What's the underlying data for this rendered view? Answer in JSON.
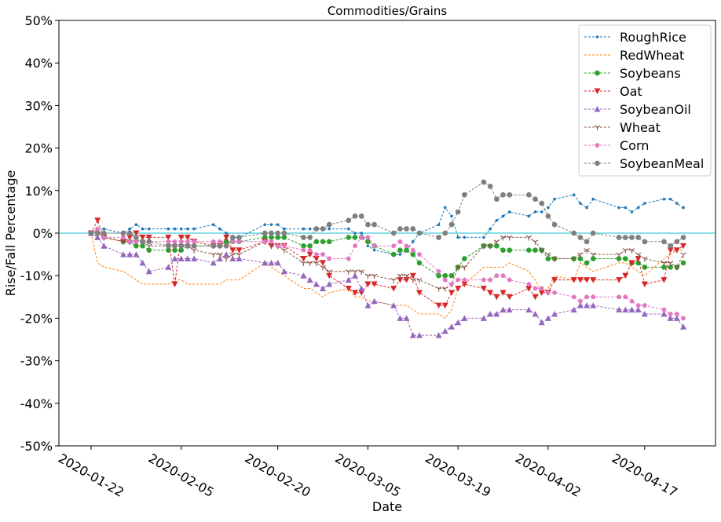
{
  "chart_data": {
    "type": "line",
    "title": "Commodities/Grains",
    "xlabel": "Date",
    "ylabel": "Rise/Fall Percentage",
    "ylim": [
      -50,
      50
    ],
    "yticks": [
      -50,
      -40,
      -30,
      -20,
      -10,
      0,
      10,
      20,
      30,
      40,
      50
    ],
    "ytick_labels": [
      "-50%",
      "-40%",
      "-30%",
      "-20%",
      "-10%",
      "0%",
      "10%",
      "20%",
      "30%",
      "40%",
      "50%"
    ],
    "xticks": [
      "2020-01-22",
      "2020-02-05",
      "2020-02-20",
      "2020-03-05",
      "2020-03-19",
      "2020-04-02",
      "2020-04-17"
    ],
    "xlim": [
      "2020-01-17",
      "2020-04-28"
    ],
    "zero_line_color": "#17becf",
    "legend_position": "upper right",
    "grid": false,
    "x": [
      "2020-01-22",
      "2020-01-23",
      "2020-01-24",
      "2020-01-27",
      "2020-01-28",
      "2020-01-29",
      "2020-01-30",
      "2020-01-31",
      "2020-02-03",
      "2020-02-04",
      "2020-02-05",
      "2020-02-06",
      "2020-02-07",
      "2020-02-10",
      "2020-02-11",
      "2020-02-12",
      "2020-02-13",
      "2020-02-14",
      "2020-02-18",
      "2020-02-19",
      "2020-02-20",
      "2020-02-21",
      "2020-02-24",
      "2020-02-25",
      "2020-02-26",
      "2020-02-27",
      "2020-02-28",
      "2020-03-02",
      "2020-03-03",
      "2020-03-04",
      "2020-03-05",
      "2020-03-06",
      "2020-03-09",
      "2020-03-10",
      "2020-03-11",
      "2020-03-12",
      "2020-03-13",
      "2020-03-16",
      "2020-03-17",
      "2020-03-18",
      "2020-03-19",
      "2020-03-20",
      "2020-03-23",
      "2020-03-24",
      "2020-03-25",
      "2020-03-26",
      "2020-03-27",
      "2020-03-30",
      "2020-03-31",
      "2020-04-01",
      "2020-04-02",
      "2020-04-03",
      "2020-04-06",
      "2020-04-07",
      "2020-04-08",
      "2020-04-09",
      "2020-04-13",
      "2020-04-14",
      "2020-04-15",
      "2020-04-16",
      "2020-04-17",
      "2020-04-20",
      "2020-04-21",
      "2020-04-22",
      "2020-04-23"
    ],
    "series": [
      {
        "name": "RoughRice",
        "color": "#1f77b4",
        "marker": "point",
        "values": [
          0,
          1,
          1,
          0,
          1,
          2,
          1,
          1,
          1,
          1,
          1,
          1,
          1,
          2,
          1,
          0,
          -1,
          -1,
          2,
          2,
          2,
          1,
          1,
          1,
          1,
          1,
          1,
          1,
          0,
          0,
          -3,
          -4,
          -5,
          -5,
          -4,
          -2,
          0,
          2,
          6,
          4,
          -1,
          -1,
          -1,
          1,
          3,
          4,
          5,
          4,
          5,
          5,
          6,
          8,
          9,
          7,
          6,
          8,
          6,
          6,
          5,
          6,
          7,
          8,
          8,
          7,
          6
        ]
      },
      {
        "name": "RedWheat",
        "color": "#ff7f0e",
        "marker": "none",
        "values": [
          0,
          -7,
          -8,
          -9,
          -10,
          -11,
          -12,
          -12,
          -12,
          -11,
          -11,
          -12,
          -12,
          -12,
          -12,
          -11,
          -11,
          -11,
          -7,
          -8,
          -9,
          -10,
          -13,
          -13,
          -14,
          -15,
          -14,
          -13,
          -15,
          -15,
          -16,
          -16,
          -17,
          -17,
          -17,
          -18,
          -19,
          -19,
          -20,
          -18,
          -13,
          -12,
          -8,
          -8,
          -8,
          -8,
          -7,
          -9,
          -11,
          -14,
          -13,
          -10,
          -11,
          -7,
          -8,
          -9,
          -7,
          -7,
          -8,
          -9,
          -10,
          -6,
          -5,
          -4,
          -4
        ]
      },
      {
        "name": "Soybeans",
        "color": "#2ca02c",
        "marker": "circle",
        "values": [
          0,
          0,
          -1,
          -2,
          -2,
          -3,
          -3,
          -4,
          -4,
          -4,
          -4,
          -3,
          -3,
          -3,
          -3,
          -2,
          -2,
          -2,
          -1,
          -1,
          -1,
          -1,
          -3,
          -3,
          -2,
          -2,
          -2,
          -1,
          -1,
          -1,
          -2,
          -3,
          -5,
          -4,
          -4,
          -5,
          -7,
          -10,
          -10,
          -10,
          -8,
          -6,
          -3,
          -3,
          -3,
          -4,
          -4,
          -4,
          -4,
          -4,
          -6,
          -6,
          -6,
          -6,
          -7,
          -6,
          -6,
          -6,
          -7,
          -7,
          -8,
          -8,
          -8,
          -8,
          -7
        ]
      },
      {
        "name": "Oat",
        "color": "#d62728",
        "marker": "triangle_down",
        "values": [
          0,
          3,
          -1,
          -2,
          -1,
          0,
          -1,
          -1,
          -1,
          -12,
          -1,
          -1,
          -2,
          -3,
          -3,
          -1,
          -4,
          -4,
          -2,
          -3,
          -3,
          -3,
          -6,
          -5,
          -6,
          -7,
          -10,
          -13,
          -14,
          -14,
          -12,
          -12,
          -13,
          -11,
          -11,
          -10,
          -14,
          -17,
          -17,
          -14,
          -13,
          -12,
          -13,
          -14,
          -15,
          -14,
          -15,
          -13,
          -15,
          -14,
          -14,
          -11,
          -11,
          -11,
          -11,
          -11,
          -11,
          -10,
          -7,
          -6,
          -12,
          -11,
          -4,
          -4,
          -3
        ]
      },
      {
        "name": "SoybeanOil",
        "color": "#9467bd",
        "marker": "triangle_up",
        "values": [
          0,
          -1,
          -3,
          -5,
          -5,
          -5,
          -7,
          -9,
          -8,
          -6,
          -6,
          -6,
          -6,
          -7,
          -6,
          -5,
          -6,
          -6,
          -7,
          -7,
          -7,
          -9,
          -10,
          -11,
          -12,
          -13,
          -12,
          -11,
          -10,
          -13,
          -17,
          -16,
          -17,
          -20,
          -20,
          -24,
          -24,
          -24,
          -23,
          -22,
          -21,
          -20,
          -20,
          -19,
          -19,
          -18,
          -18,
          -18,
          -19,
          -21,
          -20,
          -19,
          -18,
          -17,
          -17,
          -17,
          -18,
          -18,
          -18,
          -18,
          -19,
          -19,
          -20,
          -20,
          -22
        ]
      },
      {
        "name": "Wheat",
        "color": "#8c564b",
        "marker": "tri_down",
        "values": [
          0,
          0,
          -1,
          -2,
          -2,
          -2,
          -2,
          -3,
          -3,
          -3,
          -3,
          -3,
          -4,
          -5,
          -5,
          -6,
          -5,
          -5,
          -2,
          -3,
          -3,
          -4,
          -7,
          -7,
          -7,
          -8,
          -9,
          -9,
          -9,
          -9,
          -10,
          -10,
          -11,
          -10,
          -10,
          -11,
          -11,
          -13,
          -13,
          -12,
          -8,
          -8,
          -3,
          -3,
          -2,
          -1,
          -1,
          -1,
          -2,
          -4,
          -5,
          -6,
          -6,
          -5,
          -4,
          -5,
          -5,
          -4,
          -4,
          -5,
          -6,
          -7,
          -7,
          -8,
          -5
        ]
      },
      {
        "name": "Corn",
        "color": "#e377c2",
        "marker": "pentagon",
        "values": [
          0,
          1,
          -1,
          -1,
          -2,
          -2,
          -2,
          -2,
          -2,
          -2,
          -2,
          -2,
          -2,
          -2,
          -2,
          -3,
          -2,
          -2,
          -2,
          -2,
          -3,
          -3,
          -4,
          -4,
          -5,
          -5,
          -6,
          -6,
          -3,
          -1,
          -1,
          -3,
          -3,
          -2,
          -3,
          -4,
          -5,
          -9,
          -11,
          -12,
          -11,
          -11,
          -11,
          -11,
          -10,
          -10,
          -11,
          -12,
          -13,
          -13,
          -14,
          -14,
          -15,
          -16,
          -15,
          -15,
          -15,
          -15,
          -16,
          -17,
          -17,
          -18,
          -19,
          -19,
          -20
        ]
      },
      {
        "name": "SoybeanMeal",
        "color": "#7f7f7f",
        "marker": "octagon",
        "values": [
          0,
          0,
          0,
          0,
          0,
          -1,
          -2,
          -2,
          -3,
          -3,
          -3,
          -3,
          -3,
          -3,
          -3,
          -3,
          -1,
          -1,
          0,
          0,
          0,
          0,
          -1,
          -1,
          1,
          1,
          2,
          3,
          4,
          4,
          2,
          2,
          0,
          1,
          1,
          1,
          0,
          -1,
          0,
          2,
          5,
          9,
          12,
          11,
          8,
          9,
          9,
          9,
          8,
          7,
          4,
          2,
          0,
          -1,
          -2,
          0,
          -1,
          -1,
          -1,
          -1,
          -2,
          -2,
          -3,
          -2,
          -1
        ]
      }
    ]
  }
}
